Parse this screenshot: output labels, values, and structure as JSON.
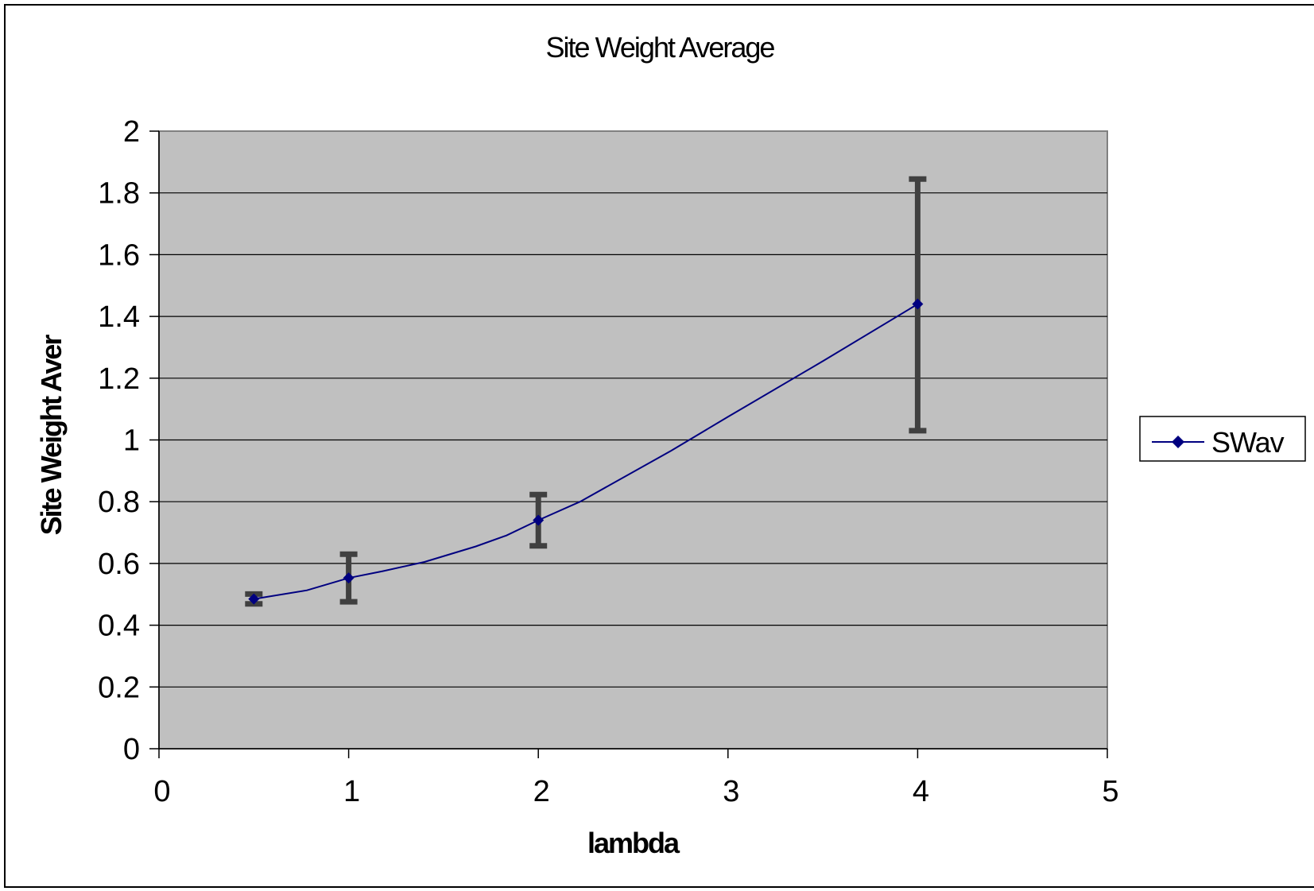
{
  "chart_data": {
    "type": "line",
    "title": "Site Weight Average",
    "xlabel": "lambda",
    "ylabel": "Site Weight Aver",
    "xlim": [
      0,
      5
    ],
    "ylim": [
      0,
      2
    ],
    "xticks": [
      "0",
      "1",
      "2",
      "3",
      "4",
      "5"
    ],
    "yticks": [
      "0",
      "0.2",
      "0.4",
      "0.6",
      "0.8",
      "1",
      "1.2",
      "1.4",
      "1.6",
      "1.8",
      "2"
    ],
    "grid": true,
    "legend_position": "right",
    "series": [
      {
        "name": "SWav",
        "color": "#000080",
        "marker": "diamond",
        "x": [
          0.5,
          1,
          2,
          4
        ],
        "y": [
          0.485,
          0.553,
          0.74,
          1.44
        ],
        "error_low": [
          0.469,
          0.476,
          0.657,
          1.03
        ],
        "error_high": [
          0.501,
          0.63,
          0.823,
          1.845
        ]
      }
    ],
    "line_path": [
      [
        0.5,
        0.485
      ],
      [
        0.78,
        0.513
      ],
      [
        1,
        0.553
      ],
      [
        1.18,
        0.575
      ],
      [
        1.4,
        0.605
      ],
      [
        1.67,
        0.655
      ],
      [
        1.83,
        0.69
      ],
      [
        2,
        0.74
      ],
      [
        2.22,
        0.8
      ],
      [
        2.7,
        0.965
      ],
      [
        3,
        1.075
      ],
      [
        3.5,
        1.255
      ],
      [
        4,
        1.44
      ]
    ],
    "colors": {
      "plot_background": "#c0c0c0",
      "gridline": "#000000",
      "error_bar": "#404040",
      "series": "#000080"
    }
  }
}
